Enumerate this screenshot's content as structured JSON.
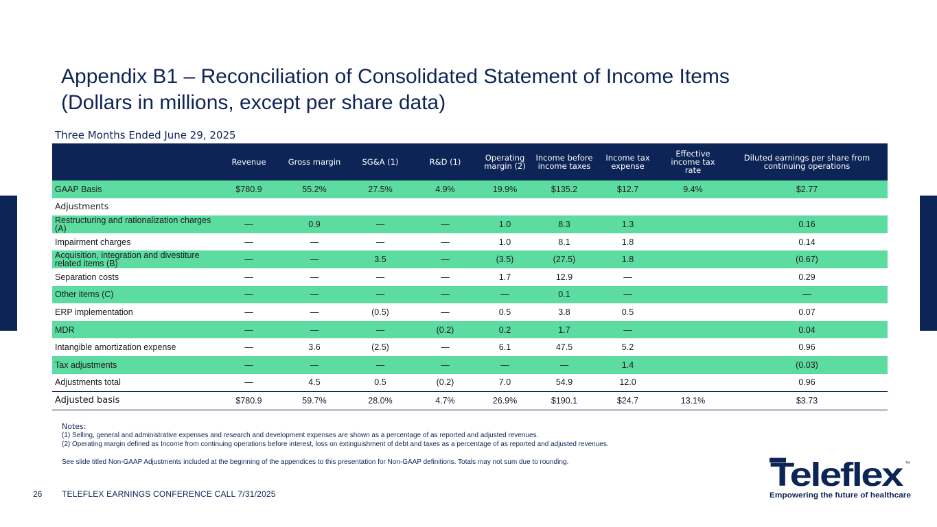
{
  "title": {
    "line1": "Appendix B1 – Reconciliation of Consolidated Statement of Income Items",
    "line2": "(Dollars in millions, except per share data)"
  },
  "period": "Three Months Ended June 29, 2025",
  "table": {
    "headers": [
      "",
      "Revenue",
      "Gross margin",
      "SG&A (1)",
      "R&D (1)",
      "Operating margin (2)",
      "Income before income taxes",
      "Income tax expense",
      "Effective income tax rate",
      "Diluted earnings per share from continuing operations"
    ],
    "rows": [
      {
        "label": "GAAP Basis",
        "cells": [
          "$780.9",
          "55.2%",
          "27.5%",
          "4.9%",
          "19.9%",
          "$135.2",
          "$12.7",
          "9.4%",
          "$2.77"
        ]
      },
      {
        "label": "Adjustments",
        "cells": [
          "",
          "",
          "",
          "",
          "",
          "",
          "",
          "",
          ""
        ]
      },
      {
        "label": "Restructuring and rationalization charges (A)",
        "cells": [
          "—",
          "0.9",
          "—",
          "—",
          "1.0",
          "8.3",
          "1.3",
          "",
          "0.16"
        ]
      },
      {
        "label": "Impairment charges",
        "cells": [
          "—",
          "—",
          "—",
          "—",
          "1.0",
          "8.1",
          "1.8",
          "",
          "0.14"
        ]
      },
      {
        "label": "Acquisition, integration and divestiture related items (B)",
        "cells": [
          "—",
          "—",
          "3.5",
          "—",
          "(3.5)",
          "(27.5)",
          "1.8",
          "",
          "(0.67)"
        ]
      },
      {
        "label": "Separation costs",
        "cells": [
          "—",
          "—",
          "—",
          "—",
          "1.7",
          "12.9",
          "—",
          "",
          "0.29"
        ]
      },
      {
        "label": "Other items (C)",
        "cells": [
          "—",
          "—",
          "—",
          "—",
          "—",
          "0.1",
          "—",
          "",
          "—"
        ]
      },
      {
        "label": "ERP implementation",
        "cells": [
          "—",
          "—",
          "(0.5)",
          "—",
          "0.5",
          "3.8",
          "0.5",
          "",
          "0.07"
        ]
      },
      {
        "label": "MDR",
        "cells": [
          "—",
          "—",
          "—",
          "(0.2)",
          "0.2",
          "1.7",
          "—",
          "",
          "0.04"
        ]
      },
      {
        "label": "Intangible amortization expense",
        "cells": [
          "—",
          "3.6",
          "(2.5)",
          "—",
          "6.1",
          "47.5",
          "5.2",
          "",
          "0.96"
        ]
      },
      {
        "label": "Tax adjustments",
        "cells": [
          "—",
          "—",
          "—",
          "—",
          "—",
          "—",
          "1.4",
          "",
          "(0.03)"
        ]
      },
      {
        "label": "Adjustments total",
        "cells": [
          "—",
          "4.5",
          "0.5",
          "(0.2)",
          "7.0",
          "54.9",
          "12.0",
          "",
          "0.96"
        ]
      },
      {
        "label": "Adjusted basis",
        "cells": [
          "$780.9",
          "59.7%",
          "28.0%",
          "4.7%",
          "26.9%",
          "$190.1",
          "$24.7",
          "13.1%",
          "$3.73"
        ]
      }
    ]
  },
  "notes": {
    "heading": "Notes:",
    "note1": "(1) Selling, general and administrative expenses and research and development expenses are shown as a percentage of as reported and adjusted revenues.",
    "note2": "(2) Operating margin defined as Income from continuing operations before interest, loss on extinguishment of debt and taxes as a percentage of as reported and adjusted revenues.",
    "note3": "See slide titled Non-GAAP Adjustments included at the beginning of the appendices to this presentation for Non-GAAP definitions. Totals may not sum due to rounding."
  },
  "footer": {
    "page_number": "26",
    "text": "TELEFLEX EARNINGS CONFERENCE CALL 7/31/2025"
  },
  "logo": {
    "wordmark": "Teleflex",
    "trademark": "™",
    "tagline": "Empowering the future of healthcare"
  },
  "colors": {
    "navy": "#0d2456",
    "green_band": "#5ddca1"
  }
}
